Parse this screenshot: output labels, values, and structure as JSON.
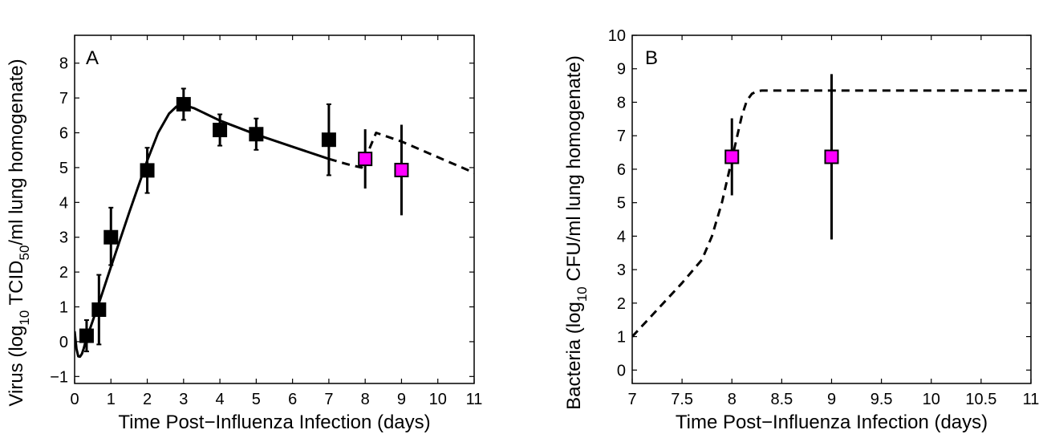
{
  "chart_data": [
    {
      "type": "line",
      "panel_label": "A",
      "xlabel": "Time Post−Influenza Infection (days)",
      "ylabel": {
        "prefix": "Virus (log",
        "sub1": "10",
        "mid": " TCID",
        "sub2": "50",
        "suffix": "/ml lung homogenate)"
      },
      "xlim": [
        0,
        11
      ],
      "ylim": [
        -1.2,
        8.8
      ],
      "xticks": [
        "0",
        "1",
        "2",
        "3",
        "4",
        "5",
        "6",
        "7",
        "8",
        "9",
        "10",
        "11"
      ],
      "yticks": [
        "-1",
        "0",
        "1",
        "2",
        "3",
        "4",
        "5",
        "6",
        "7",
        "8"
      ],
      "grid": false,
      "series": [
        {
          "style": "solid",
          "color": "#000000",
          "x": [
            0,
            0.05,
            0.1,
            0.15,
            0.2,
            0.25,
            0.3,
            0.4,
            0.5,
            0.7,
            1.0,
            1.5,
            2.0,
            2.3,
            2.6,
            2.8,
            3.0,
            3.3,
            4.0,
            5.0,
            6.0,
            7.0
          ],
          "y": [
            0.3,
            -0.2,
            -0.42,
            -0.43,
            -0.35,
            -0.2,
            0.0,
            0.3,
            0.6,
            1.2,
            2.15,
            3.7,
            5.2,
            6.0,
            6.55,
            6.75,
            6.8,
            6.7,
            6.35,
            5.95,
            5.6,
            5.25
          ]
        },
        {
          "style": "dashed",
          "color": "#000000",
          "x": [
            7.0,
            7.5,
            7.9,
            8.1,
            8.3,
            9.0,
            10.0,
            11.0
          ],
          "y": [
            5.25,
            5.1,
            5.0,
            5.5,
            6.0,
            5.75,
            5.3,
            4.85
          ]
        }
      ],
      "points": [
        {
          "x": 0.33,
          "y": 0.17,
          "err_low": 0.45,
          "err_high": 0.45,
          "color": "#000000"
        },
        {
          "x": 0.67,
          "y": 0.92,
          "err_low": 1.0,
          "err_high": 1.0,
          "color": "#000000"
        },
        {
          "x": 1.0,
          "y": 3.0,
          "err_low": 0.8,
          "err_high": 0.85,
          "color": "#000000"
        },
        {
          "x": 2.0,
          "y": 4.92,
          "err_low": 0.65,
          "err_high": 0.65,
          "color": "#000000"
        },
        {
          "x": 3.0,
          "y": 6.82,
          "err_low": 0.45,
          "err_high": 0.45,
          "color": "#000000"
        },
        {
          "x": 4.0,
          "y": 6.08,
          "err_low": 0.45,
          "err_high": 0.45,
          "color": "#000000"
        },
        {
          "x": 5.0,
          "y": 5.96,
          "err_low": 0.45,
          "err_high": 0.45,
          "color": "#000000"
        },
        {
          "x": 7.0,
          "y": 5.8,
          "err_low": 1.02,
          "err_high": 1.02,
          "color": "#000000"
        },
        {
          "x": 8.0,
          "y": 5.25,
          "err_low": 0.85,
          "err_high": 0.85,
          "color": "#ff00ff"
        },
        {
          "x": 9.0,
          "y": 4.93,
          "err_low": 1.3,
          "err_high": 1.3,
          "color": "#ff00ff"
        }
      ]
    },
    {
      "type": "line",
      "panel_label": "B",
      "xlabel": "Time Post−Influenza Infection (days)",
      "ylabel": {
        "prefix": "Bacteria (log",
        "sub1": "10",
        "suffix": " CFU/ml lung homogenate)"
      },
      "xlim": [
        7,
        11
      ],
      "ylim": [
        -0.4,
        10
      ],
      "xticks": [
        "7",
        "7.5",
        "8",
        "8.5",
        "9",
        "9.5",
        "10",
        "10.5",
        "11"
      ],
      "yticks": [
        "0",
        "1",
        "2",
        "3",
        "4",
        "5",
        "6",
        "7",
        "8",
        "9",
        "10"
      ],
      "grid": false,
      "series": [
        {
          "style": "dashed",
          "color": "#000000",
          "x": [
            7.0,
            7.25,
            7.5,
            7.7,
            7.8,
            7.9,
            8.0,
            8.1,
            8.15,
            8.2,
            8.25,
            8.3,
            9.0,
            10.0,
            11.0
          ],
          "y": [
            1.0,
            1.8,
            2.6,
            3.3,
            4.0,
            5.0,
            6.3,
            7.6,
            8.05,
            8.25,
            8.33,
            8.35,
            8.35,
            8.35,
            8.35
          ]
        }
      ],
      "points": [
        {
          "x": 8.0,
          "y": 6.37,
          "err_low": 1.15,
          "err_high": 1.15,
          "color": "#ff00ff"
        },
        {
          "x": 9.0,
          "y": 6.37,
          "err_low": 2.47,
          "err_high": 2.47,
          "color": "#ff00ff"
        }
      ]
    }
  ]
}
